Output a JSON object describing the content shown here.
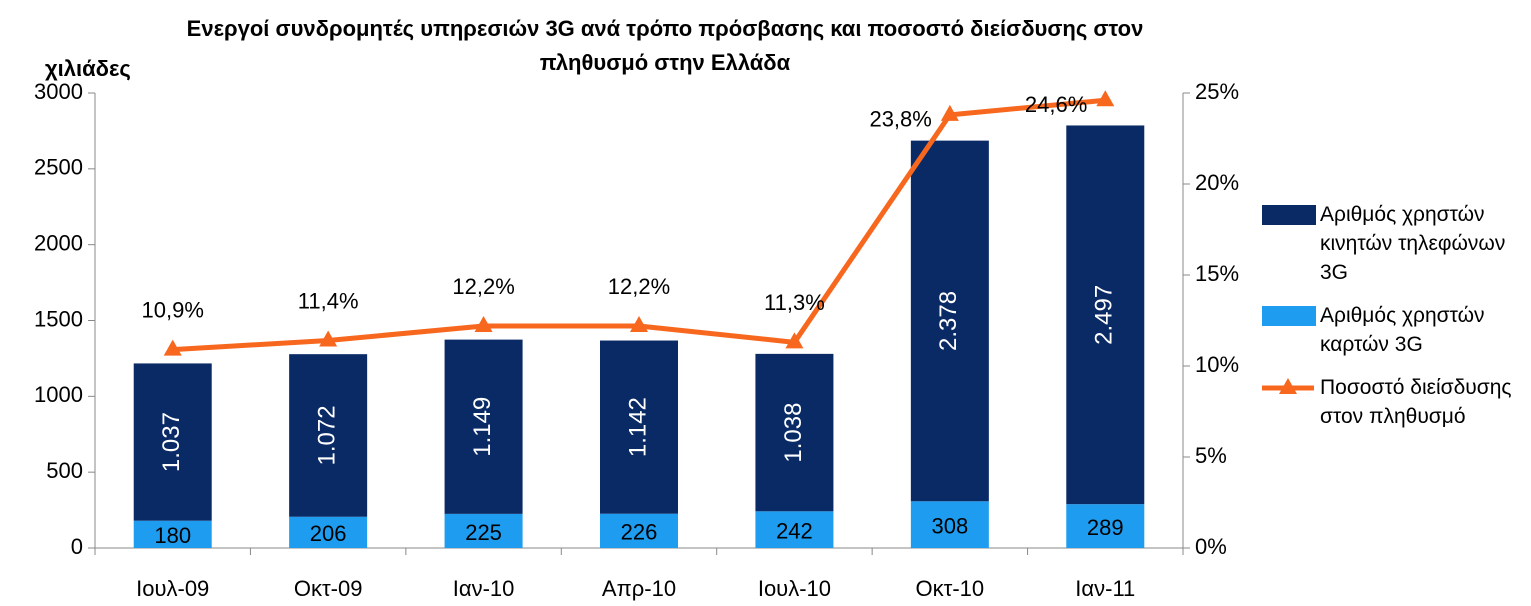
{
  "chart_data": {
    "type": "bar",
    "title": "Ενεργοί συνδρομητές υπηρεσιών 3G ανά τρόπο πρόσβασης και ποσοστό διείσδυσης στον πληθυσμό στην Ελλάδα",
    "y_label": "χιλιάδες",
    "categories": [
      "Ιουλ-09",
      "Οκτ-09",
      "Ιαν-10",
      "Απρ-10",
      "Ιουλ-10",
      "Οκτ-10",
      "Ιαν-11"
    ],
    "stacked": true,
    "series": [
      {
        "name": "Αριθμός χρηστών κινητών τηλεφώνων 3G",
        "type": "bar",
        "color": "#0a2a66",
        "label_color": "#ffffff",
        "values": [
          1037,
          1072,
          1149,
          1142,
          1038,
          2378,
          2497
        ],
        "value_labels": [
          "1.037",
          "1.072",
          "1.149",
          "1.142",
          "1.038",
          "2.378",
          "2.497"
        ]
      },
      {
        "name": "Αριθμός χρηστών καρτών 3G",
        "type": "bar",
        "color": "#1e9cf0",
        "label_color": "#000000",
        "values": [
          180,
          206,
          225,
          226,
          242,
          308,
          289
        ]
      },
      {
        "name": "Ποσοστό διείσδυσης στον πληθυσμό",
        "type": "line",
        "axis": "y2",
        "color": "#f7681e",
        "values": [
          10.9,
          11.4,
          12.2,
          12.2,
          11.3,
          23.8,
          24.6
        ],
        "value_labels": [
          "10,9%",
          "11,4%",
          "12,2%",
          "12,2%",
          "11,3%",
          "23,8%",
          "24,6%"
        ]
      }
    ],
    "ylim": [
      0,
      3000
    ],
    "yticks": [
      0,
      500,
      1000,
      1500,
      2000,
      2500,
      3000
    ],
    "y2lim": [
      0,
      25
    ],
    "y2ticks": [
      {
        "value": 0,
        "label": "0%"
      },
      {
        "value": 5,
        "label": "5%"
      },
      {
        "value": 10,
        "label": "10%"
      },
      {
        "value": 15,
        "label": "15%"
      },
      {
        "value": 20,
        "label": "20%"
      },
      {
        "value": 25,
        "label": "25%"
      }
    ]
  }
}
